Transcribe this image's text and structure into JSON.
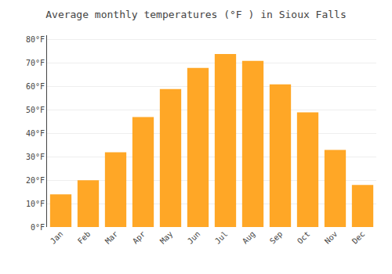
{
  "chart_data": {
    "type": "bar",
    "title": "Average monthly temperatures (°F ) in Sioux Falls",
    "categories": [
      "Jan",
      "Feb",
      "Mar",
      "Apr",
      "May",
      "Jun",
      "Jul",
      "Aug",
      "Sep",
      "Oct",
      "Nov",
      "Dec"
    ],
    "values": [
      14,
      20,
      32,
      47,
      59,
      68,
      74,
      71,
      61,
      49,
      33,
      18
    ],
    "color": "#FFA726",
    "ylim": [
      0,
      82
    ],
    "yticks": [
      {
        "value": 0,
        "label": "0°F"
      },
      {
        "value": 10,
        "label": "10°F"
      },
      {
        "value": 20,
        "label": "20°F"
      },
      {
        "value": 30,
        "label": "30°F"
      },
      {
        "value": 40,
        "label": "40°F"
      },
      {
        "value": 50,
        "label": "50°F"
      },
      {
        "value": 60,
        "label": "60°F"
      },
      {
        "value": 70,
        "label": "70°F"
      },
      {
        "value": 80,
        "label": "80°F"
      }
    ],
    "grid": true
  }
}
